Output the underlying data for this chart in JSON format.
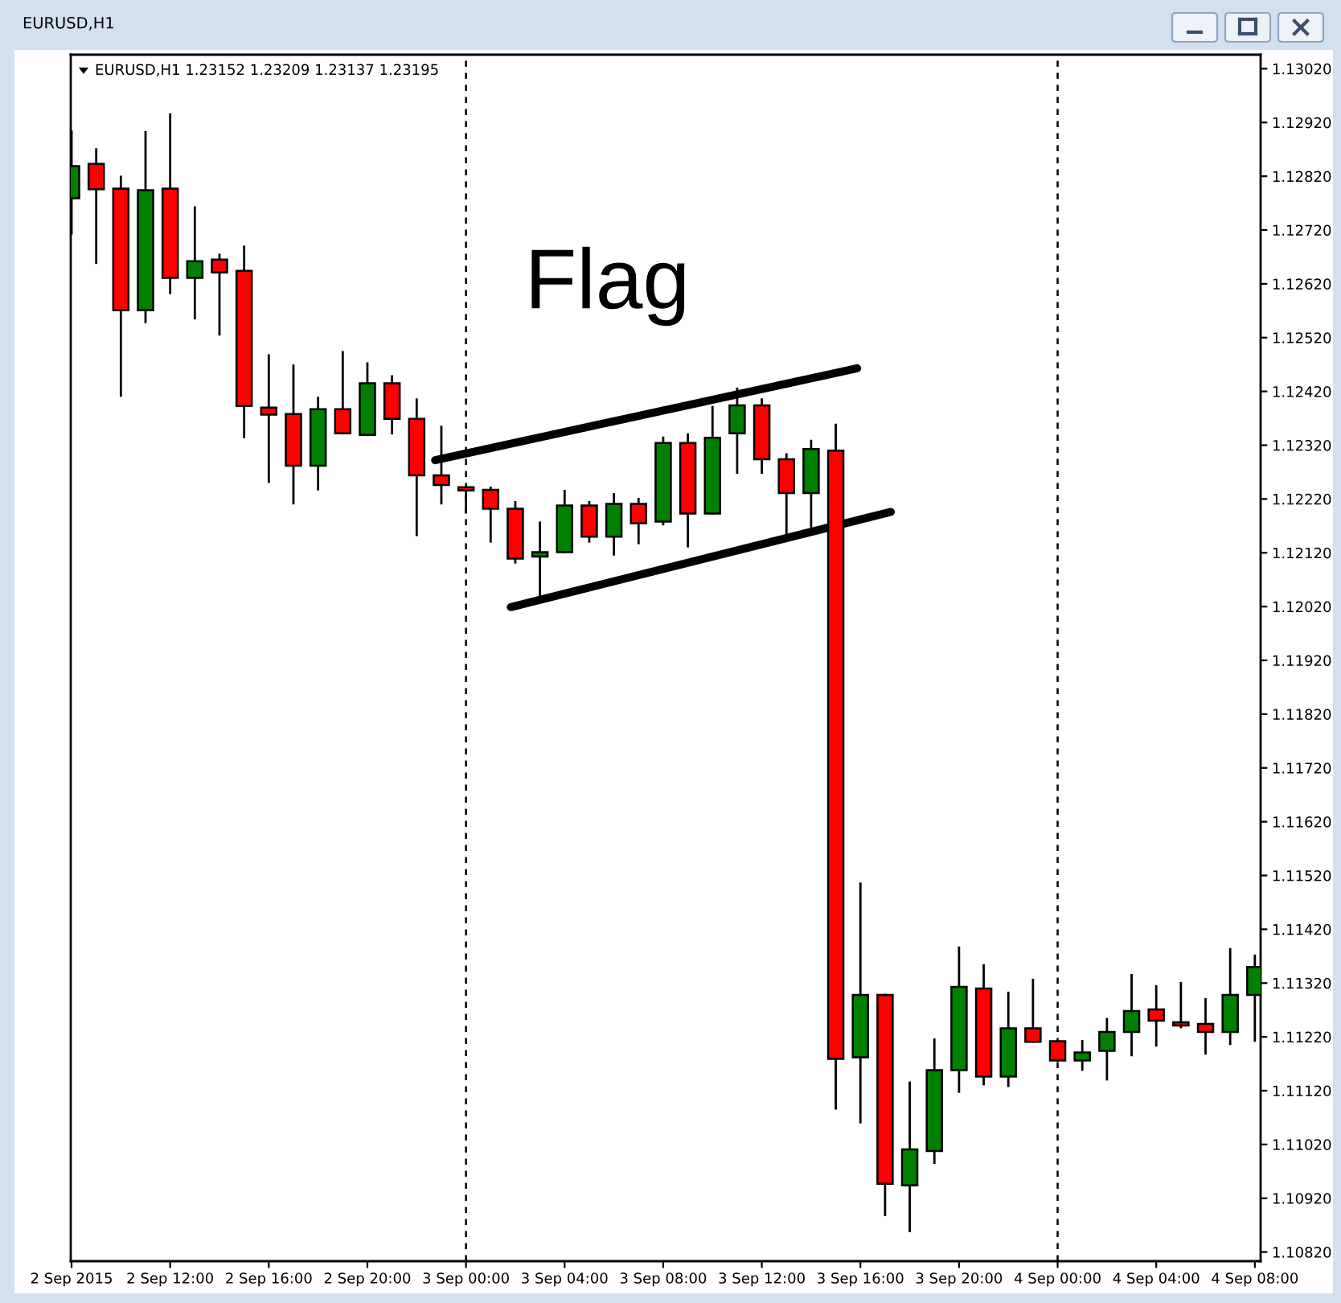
{
  "chart_data": {
    "type": "candlestick",
    "title": "EURUSD,H1",
    "subtitle": "EURUSD,H1 1.23152 1.23209 1.23137 1.23195",
    "x": [
      "2015-09-02T08:00",
      "2015-09-02T09:00",
      "2015-09-02T10:00",
      "2015-09-02T11:00",
      "2015-09-02T12:00",
      "2015-09-02T13:00",
      "2015-09-02T14:00",
      "2015-09-02T15:00",
      "2015-09-02T16:00",
      "2015-09-02T17:00",
      "2015-09-02T18:00",
      "2015-09-02T19:00",
      "2015-09-02T20:00",
      "2015-09-02T21:00",
      "2015-09-02T22:00",
      "2015-09-02T23:00",
      "2015-09-03T00:00",
      "2015-09-03T01:00",
      "2015-09-03T02:00",
      "2015-09-03T03:00",
      "2015-09-03T04:00",
      "2015-09-03T05:00",
      "2015-09-03T06:00",
      "2015-09-03T07:00",
      "2015-09-03T08:00",
      "2015-09-03T09:00",
      "2015-09-03T10:00",
      "2015-09-03T11:00",
      "2015-09-03T12:00",
      "2015-09-03T13:00",
      "2015-09-03T14:00",
      "2015-09-03T15:00",
      "2015-09-03T16:00",
      "2015-09-03T17:00",
      "2015-09-03T18:00",
      "2015-09-03T19:00",
      "2015-09-03T20:00",
      "2015-09-03T21:00",
      "2015-09-03T22:00",
      "2015-09-03T23:00",
      "2015-09-04T00:00",
      "2015-09-04T01:00",
      "2015-09-04T02:00",
      "2015-09-04T03:00",
      "2015-09-04T04:00",
      "2015-09-04T05:00",
      "2015-09-04T06:00",
      "2015-09-04T07:00",
      "2015-09-04T08:00"
    ],
    "ohlc": [
      [
        1.12779,
        1.12903,
        1.12714,
        1.12839
      ],
      [
        1.12843,
        1.1287,
        1.12659,
        1.12796
      ],
      [
        1.12797,
        1.12819,
        1.12412,
        1.12571
      ],
      [
        1.12571,
        1.12902,
        1.12549,
        1.12794
      ],
      [
        1.12797,
        1.12935,
        1.12603,
        1.12631
      ],
      [
        1.12631,
        1.12762,
        1.12556,
        1.12662
      ],
      [
        1.12665,
        1.12674,
        1.12526,
        1.12641
      ],
      [
        1.12644,
        1.12689,
        1.12335,
        1.12393
      ],
      [
        1.1239,
        1.12487,
        1.12252,
        1.12377
      ],
      [
        1.12378,
        1.12468,
        1.12212,
        1.12282
      ],
      [
        1.12282,
        1.12408,
        1.12238,
        1.12387
      ],
      [
        1.12387,
        1.12493,
        1.12342,
        1.12342
      ],
      [
        1.12339,
        1.12472,
        1.12339,
        1.12435
      ],
      [
        1.12435,
        1.12448,
        1.12342,
        1.12369
      ],
      [
        1.12369,
        1.12405,
        1.12153,
        1.12264
      ],
      [
        1.12264,
        1.12354,
        1.12212,
        1.12246
      ],
      [
        1.12242,
        1.12242,
        1.12195,
        1.12236
      ],
      [
        1.12237,
        1.12241,
        1.12141,
        1.12202
      ],
      [
        1.12202,
        1.12214,
        1.12102,
        1.12109
      ],
      [
        1.12113,
        1.12176,
        1.12039,
        1.12121
      ],
      [
        1.12121,
        1.12235,
        1.12121,
        1.12208
      ],
      [
        1.12208,
        1.12214,
        1.12141,
        1.1215
      ],
      [
        1.1215,
        1.12229,
        1.12117,
        1.12211
      ],
      [
        1.12211,
        1.1222,
        1.12138,
        1.12175
      ],
      [
        1.12178,
        1.12334,
        1.12173,
        1.12324
      ],
      [
        1.12324,
        1.1234,
        1.12132,
        1.12193
      ],
      [
        1.12193,
        1.12391,
        1.12193,
        1.12334
      ],
      [
        1.12342,
        1.12425,
        1.12269,
        1.12394
      ],
      [
        1.12394,
        1.12405,
        1.12269,
        1.12294
      ],
      [
        1.12294,
        1.12303,
        1.12156,
        1.12231
      ],
      [
        1.12231,
        1.12328,
        1.12166,
        1.12313
      ],
      [
        1.1231,
        1.12358,
        1.11087,
        1.11179
      ],
      [
        1.11182,
        1.11505,
        1.11061,
        1.11298
      ],
      [
        1.11298,
        1.11298,
        1.10889,
        1.10947
      ],
      [
        1.10944,
        1.11135,
        1.10859,
        1.11011
      ],
      [
        1.11008,
        1.11215,
        1.10986,
        1.11158
      ],
      [
        1.11158,
        1.11386,
        1.11118,
        1.11313
      ],
      [
        1.1131,
        1.11353,
        1.11132,
        1.11146
      ],
      [
        1.11146,
        1.11302,
        1.11129,
        1.11236
      ],
      [
        1.11236,
        1.11326,
        1.11211,
        1.11211
      ],
      [
        1.11212,
        1.11212,
        1.11176,
        1.11176
      ],
      [
        1.11176,
        1.11212,
        1.11159,
        1.11191
      ],
      [
        1.11194,
        1.11253,
        1.11141,
        1.11229
      ],
      [
        1.11229,
        1.11335,
        1.11186,
        1.11268
      ],
      [
        1.11271,
        1.11314,
        1.11204,
        1.1125
      ],
      [
        1.11247,
        1.1132,
        1.11238,
        1.11241
      ],
      [
        1.11244,
        1.1129,
        1.11189,
        1.11229
      ],
      [
        1.11229,
        1.11383,
        1.11207,
        1.11298
      ],
      [
        1.11298,
        1.11371,
        1.11213,
        1.1135
      ]
    ],
    "colors": [
      "#008000",
      "#ff0000",
      "#ff0000",
      "#008000",
      "#ff0000",
      "#008000",
      "#ff0000",
      "#ff0000",
      "#ff0000",
      "#ff0000",
      "#008000",
      "#ff0000",
      "#008000",
      "#ff0000",
      "#ff0000",
      "#ff0000",
      "#ff0000",
      "#ff0000",
      "#ff0000",
      "#008000",
      "#008000",
      "#ff0000",
      "#008000",
      "#ff0000",
      "#008000",
      "#ff0000",
      "#008000",
      "#008000",
      "#ff0000",
      "#ff0000",
      "#008000",
      "#ff0000",
      "#008000",
      "#ff0000",
      "#008000",
      "#008000",
      "#008000",
      "#ff0000",
      "#008000",
      "#ff0000",
      "#ff0000",
      "#008000",
      "#008000",
      "#008000",
      "#ff0000",
      "#ff0000",
      "#ff0000",
      "#008000",
      "#008000"
    ],
    "series": [
      {
        "type": "line",
        "color": "#000000",
        "x": [
          "2015-09-02T22:45",
          "2015-09-03T15:52"
        ],
        "values": [
          1.12292,
          1.12463
        ]
      },
      {
        "type": "line",
        "color": "#000000",
        "x": [
          "2015-09-03T01:49",
          "2015-09-03T17:14"
        ],
        "values": [
          1.12019,
          1.12196
        ]
      }
    ],
    "ref_lines": [
      {
        "axis": "x",
        "value": "2015-09-03T00:00",
        "color": "#000000",
        "line_style": "dashed"
      },
      {
        "axis": "x",
        "value": "2015-09-04T00:00",
        "color": "#000000",
        "line_style": "dashed"
      }
    ],
    "annotations": [
      "Flag"
    ],
    "xlim": [
      "2015-09-02T07:58",
      "2015-09-04T08:14"
    ],
    "xticks": [
      {
        "value": "2015-09-02T08:00",
        "label": "2 Sep 2015"
      },
      {
        "value": "2015-09-02T12:00",
        "label": "2 Sep 12:00"
      },
      {
        "value": "2015-09-02T16:00",
        "label": "2 Sep 16:00"
      },
      {
        "value": "2015-09-02T20:00",
        "label": "2 Sep 20:00"
      },
      {
        "value": "2015-09-03T00:00",
        "label": "3 Sep 00:00"
      },
      {
        "value": "2015-09-03T04:00",
        "label": "3 Sep 04:00"
      },
      {
        "value": "2015-09-03T08:00",
        "label": "3 Sep 08:00"
      },
      {
        "value": "2015-09-03T12:00",
        "label": "3 Sep 12:00"
      },
      {
        "value": "2015-09-03T16:00",
        "label": "3 Sep 16:00"
      },
      {
        "value": "2015-09-03T20:00",
        "label": "3 Sep 20:00"
      },
      {
        "value": "2015-09-04T00:00",
        "label": "4 Sep 00:00"
      },
      {
        "value": "2015-09-04T04:00",
        "label": "4 Sep 04:00"
      },
      {
        "value": "2015-09-04T08:00",
        "label": "4 Sep 08:00"
      }
    ],
    "ylim": [
      1.10803,
      1.13046
    ],
    "yticks": [
      {
        "value": 1.1302,
        "label": "1.13020"
      },
      {
        "value": 1.1292,
        "label": "1.12920"
      },
      {
        "value": 1.1282,
        "label": "1.12820"
      },
      {
        "value": 1.1272,
        "label": "1.12720"
      },
      {
        "value": 1.1262,
        "label": "1.12620"
      },
      {
        "value": 1.1252,
        "label": "1.12520"
      },
      {
        "value": 1.1242,
        "label": "1.12420"
      },
      {
        "value": 1.1232,
        "label": "1.12320"
      },
      {
        "value": 1.1222,
        "label": "1.12220"
      },
      {
        "value": 1.1212,
        "label": "1.12120"
      },
      {
        "value": 1.1202,
        "label": "1.12020"
      },
      {
        "value": 1.1192,
        "label": "1.11920"
      },
      {
        "value": 1.1182,
        "label": "1.11820"
      },
      {
        "value": 1.1172,
        "label": "1.11720"
      },
      {
        "value": 1.1162,
        "label": "1.11620"
      },
      {
        "value": 1.1152,
        "label": "1.11520"
      },
      {
        "value": 1.1142,
        "label": "1.11420"
      },
      {
        "value": 1.1132,
        "label": "1.11320"
      },
      {
        "value": 1.1122,
        "label": "1.11220"
      },
      {
        "value": 1.1112,
        "label": "1.11120"
      },
      {
        "value": 1.1102,
        "label": "1.11020"
      },
      {
        "value": 1.1092,
        "label": "1.10920"
      },
      {
        "value": 1.1082,
        "label": "1.10820"
      }
    ]
  }
}
